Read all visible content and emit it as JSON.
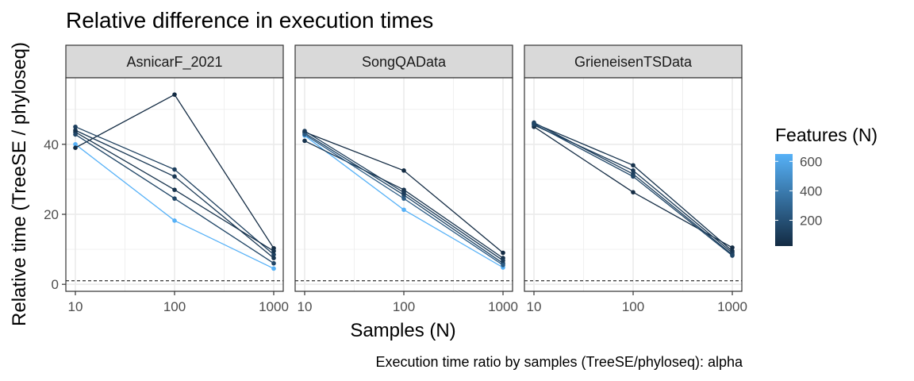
{
  "chart_data": {
    "type": "line",
    "title": "Relative difference in execution times",
    "xlabel": "Samples (N)",
    "ylabel": "Relative time (TreeSE / phyloseq)",
    "caption": "Execution time ratio by samples (TreeSE/phyloseq):  alpha",
    "x_scale": "log10",
    "x_ticks": [
      10,
      100,
      1000
    ],
    "x_tick_labels": [
      "10",
      "100",
      "1000"
    ],
    "y_ticks": [
      0,
      20,
      40
    ],
    "y_tick_labels": [
      "0",
      "20",
      "40"
    ],
    "ylim": [
      -2,
      59
    ],
    "reference_line": {
      "y": 1,
      "style": "dashed"
    },
    "grid": true,
    "legend": {
      "title": "Features (N)",
      "type": "colorbar",
      "placement": "right",
      "range": [
        25,
        650
      ],
      "ticks": [
        200,
        400,
        600
      ],
      "tick_labels": [
        "200",
        "400",
        "600"
      ],
      "color_low": "#132b43",
      "color_high": "#56b1f7"
    },
    "panels": [
      {
        "name": "AsnicarF_2021",
        "series": [
          {
            "features": 650,
            "x": [
              10,
              100,
              1000
            ],
            "y": [
              40.0,
              18.2,
              4.5
            ]
          },
          {
            "features": 25,
            "x": [
              10,
              100,
              1000
            ],
            "y": [
              39.0,
              54.2,
              10.3
            ]
          },
          {
            "features": 120,
            "x": [
              10,
              100,
              1000
            ],
            "y": [
              45.0,
              32.8,
              8.5
            ]
          },
          {
            "features": 80,
            "x": [
              10,
              100,
              1000
            ],
            "y": [
              44.0,
              30.8,
              7.5
            ]
          },
          {
            "features": 60,
            "x": [
              10,
              100,
              1000
            ],
            "y": [
              43.5,
              27.0,
              9.5
            ]
          },
          {
            "features": 150,
            "x": [
              10,
              100,
              1000
            ],
            "y": [
              42.8,
              24.5,
              6.0
            ]
          }
        ]
      },
      {
        "name": "SongQAData",
        "series": [
          {
            "features": 650,
            "x": [
              10,
              100,
              1000
            ],
            "y": [
              42.5,
              21.3,
              4.8
            ]
          },
          {
            "features": 25,
            "x": [
              10,
              100,
              1000
            ],
            "y": [
              43.5,
              32.5,
              9.0
            ]
          },
          {
            "features": 60,
            "x": [
              10,
              100,
              1000
            ],
            "y": [
              41.0,
              27.0,
              7.5
            ]
          },
          {
            "features": 150,
            "x": [
              10,
              100,
              1000
            ],
            "y": [
              43.2,
              25.5,
              6.0
            ]
          },
          {
            "features": 250,
            "x": [
              10,
              100,
              1000
            ],
            "y": [
              42.8,
              24.5,
              5.5
            ]
          },
          {
            "features": 100,
            "x": [
              10,
              100,
              1000
            ],
            "y": [
              43.8,
              26.2,
              6.8
            ]
          }
        ]
      },
      {
        "name": "GrieneisenTSData",
        "series": [
          {
            "features": 30,
            "x": [
              10,
              100,
              1000
            ],
            "y": [
              45.0,
              26.3,
              10.5
            ]
          },
          {
            "features": 60,
            "x": [
              10,
              100,
              1000
            ],
            "y": [
              46.0,
              34.0,
              9.5
            ]
          },
          {
            "features": 90,
            "x": [
              10,
              100,
              1000
            ],
            "y": [
              45.5,
              32.5,
              9.0
            ]
          },
          {
            "features": 120,
            "x": [
              10,
              100,
              1000
            ],
            "y": [
              46.2,
              31.5,
              8.5
            ]
          },
          {
            "features": 150,
            "x": [
              10,
              100,
              1000
            ],
            "y": [
              45.8,
              30.8,
              8.2
            ]
          }
        ]
      }
    ]
  }
}
